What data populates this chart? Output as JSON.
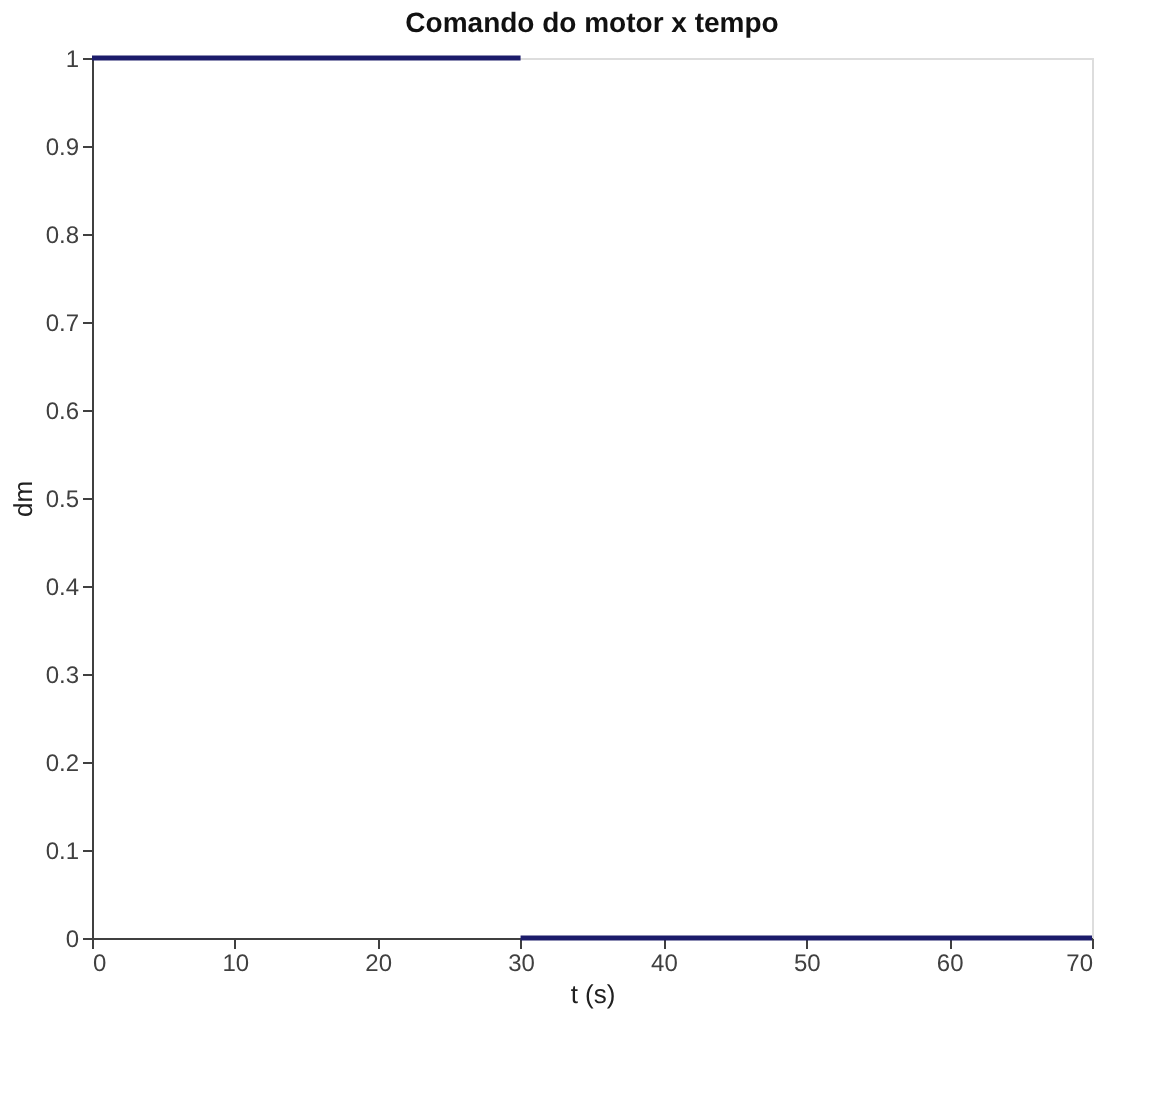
{
  "chart_data": {
    "type": "line",
    "title": "Comando do motor x tempo",
    "xlabel": "t (s)",
    "ylabel": "dm",
    "series": [
      {
        "color": "#1c1c6b",
        "x": [
          0,
          30
        ],
        "values": [
          1,
          1
        ]
      },
      {
        "color": "#1c1c6b",
        "x": [
          30,
          70
        ],
        "values": [
          0,
          0
        ]
      }
    ],
    "xlim": [
      0,
      70
    ],
    "ylim": [
      0,
      1
    ],
    "xticks": [
      0,
      10,
      20,
      30,
      40,
      50,
      60,
      70
    ],
    "yticks": [
      0,
      0.1,
      0.2,
      0.3,
      0.4,
      0.5,
      0.6,
      0.7,
      0.8,
      0.9,
      1
    ],
    "grid": false,
    "marker": "none",
    "line_style": "solid"
  }
}
